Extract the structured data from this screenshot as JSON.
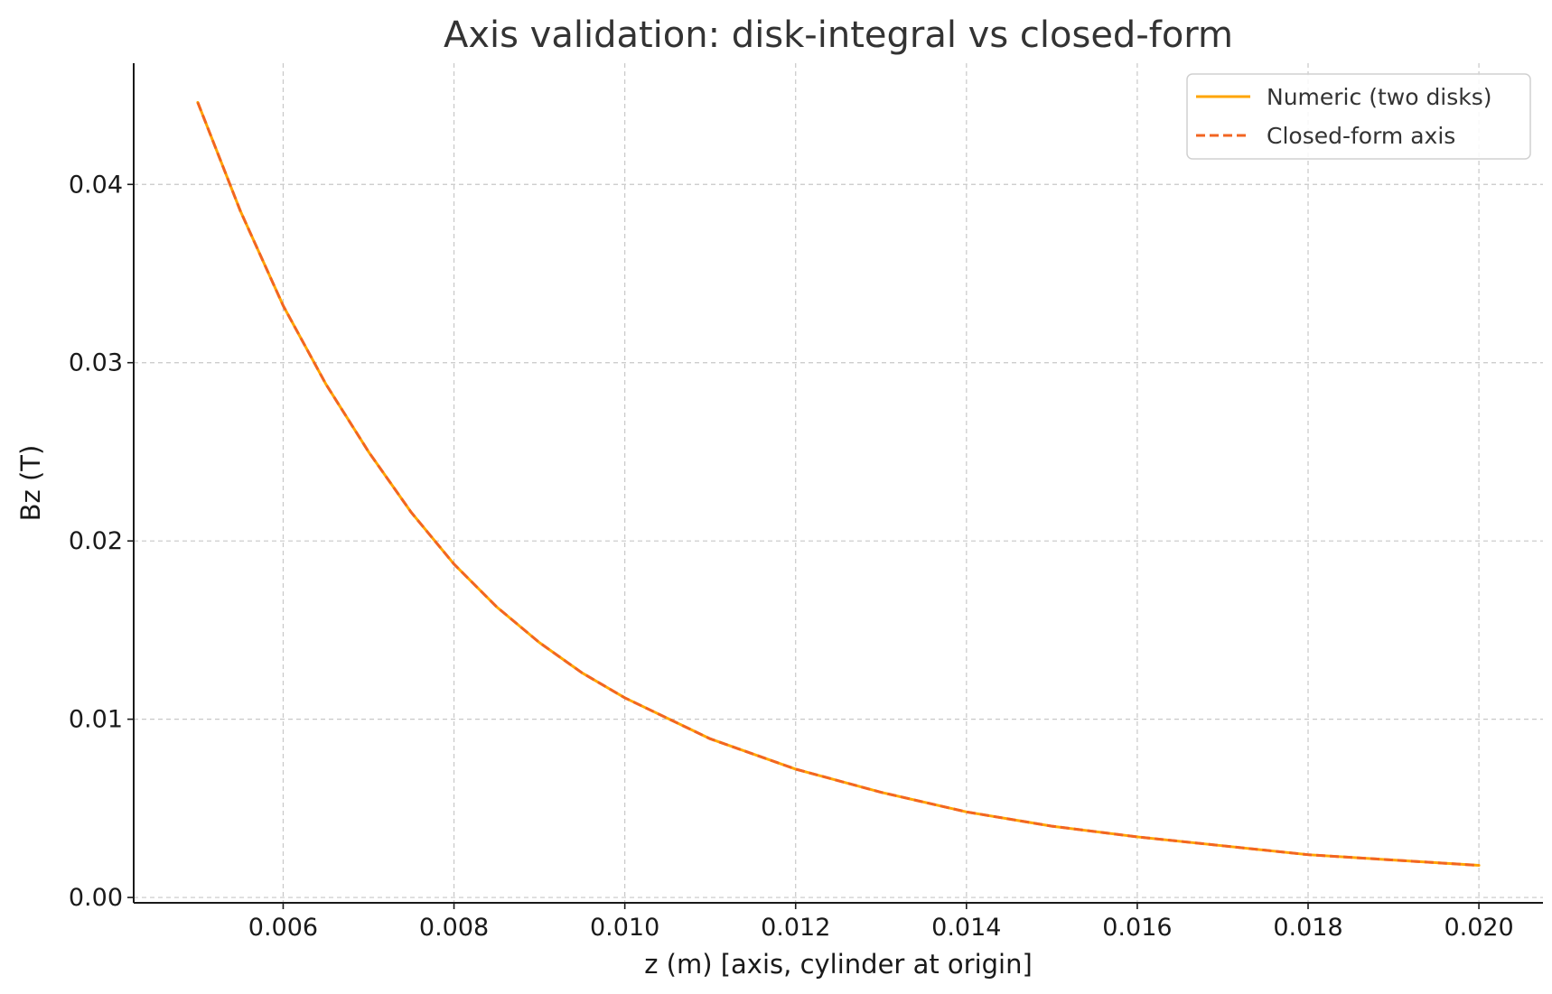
{
  "chart_data": {
    "type": "line",
    "title": "Axis validation: disk-integral vs closed-form",
    "xlabel": "z (m)   [axis, cylinder at origin]",
    "ylabel": "Bz (T)",
    "xlim": [
      0.00425,
      0.02075
    ],
    "ylim": [
      -0.0003,
      0.0468
    ],
    "xticks": [
      0.006,
      0.008,
      0.01,
      0.012,
      0.014,
      0.016,
      0.018,
      0.02
    ],
    "xtick_labels": [
      "0.006",
      "0.008",
      "0.010",
      "0.012",
      "0.014",
      "0.016",
      "0.018",
      "0.020"
    ],
    "yticks": [
      0.0,
      0.01,
      0.02,
      0.03,
      0.04
    ],
    "ytick_labels": [
      "0.00",
      "0.01",
      "0.02",
      "0.03",
      "0.04"
    ],
    "grid": true,
    "legend_position": "top-right",
    "x": [
      0.005,
      0.0055,
      0.006,
      0.0065,
      0.007,
      0.0075,
      0.008,
      0.0085,
      0.009,
      0.0095,
      0.01,
      0.011,
      0.012,
      0.013,
      0.014,
      0.015,
      0.016,
      0.017,
      0.018,
      0.019,
      0.02
    ],
    "series": [
      {
        "name": "Numeric (two disks)",
        "color": "#ffa500",
        "dash": "solid",
        "values": [
          0.0446,
          0.0385,
          0.0332,
          0.0288,
          0.025,
          0.0216,
          0.0187,
          0.0163,
          0.0143,
          0.0126,
          0.0112,
          0.0089,
          0.0072,
          0.0059,
          0.0048,
          0.004,
          0.0034,
          0.0029,
          0.0024,
          0.0021,
          0.0018
        ]
      },
      {
        "name": "Closed-form axis",
        "color": "#f26522",
        "dash": "dashed",
        "values": [
          0.0446,
          0.0385,
          0.0332,
          0.0288,
          0.025,
          0.0216,
          0.0187,
          0.0163,
          0.0143,
          0.0126,
          0.0112,
          0.0089,
          0.0072,
          0.0059,
          0.0048,
          0.004,
          0.0034,
          0.0029,
          0.0024,
          0.0021,
          0.0018
        ]
      }
    ]
  }
}
